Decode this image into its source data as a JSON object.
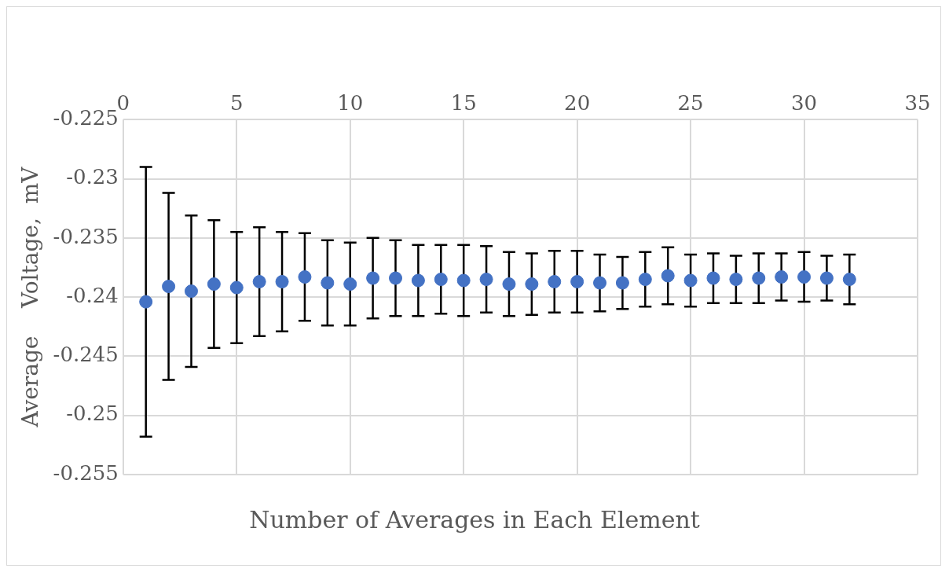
{
  "chart_data": {
    "type": "scatter",
    "xlabel": "Number of Averages in Each Element",
    "ylabel": "Average    Voltage,  mV",
    "x": [
      1,
      2,
      3,
      4,
      5,
      6,
      7,
      8,
      9,
      10,
      11,
      12,
      13,
      14,
      15,
      16,
      17,
      18,
      19,
      20,
      21,
      22,
      23,
      24,
      25,
      26,
      27,
      28,
      29,
      30,
      31,
      32
    ],
    "series": [
      {
        "color": "#4472c4",
        "values": [
          -0.2404,
          -0.2391,
          -0.2395,
          -0.2389,
          -0.2392,
          -0.2387,
          -0.2387,
          -0.2383,
          -0.2388,
          -0.2389,
          -0.2384,
          -0.2384,
          -0.2386,
          -0.2385,
          -0.2386,
          -0.2385,
          -0.2389,
          -0.2389,
          -0.2387,
          -0.2387,
          -0.2388,
          -0.2388,
          -0.2385,
          -0.2382,
          -0.2386,
          -0.2384,
          -0.2385,
          -0.2384,
          -0.2383,
          -0.2383,
          -0.2384,
          -0.2385
        ],
        "errors": [
          0.0114,
          0.0079,
          0.0064,
          0.0054,
          0.0047,
          0.0046,
          0.0042,
          0.0037,
          0.0036,
          0.0035,
          0.0034,
          0.0032,
          0.003,
          0.0029,
          0.003,
          0.0028,
          0.0027,
          0.0026,
          0.0026,
          0.0026,
          0.0024,
          0.0022,
          0.0023,
          0.0024,
          0.0022,
          0.0021,
          0.002,
          0.0021,
          0.002,
          0.0021,
          0.0019,
          0.0021
        ]
      }
    ],
    "xlim": [
      0,
      35
    ],
    "xticks": [
      0,
      5,
      10,
      15,
      20,
      25,
      30,
      35
    ],
    "ylim": [
      -0.255,
      -0.225
    ],
    "yticks": [
      -0.255,
      -0.25,
      -0.245,
      -0.24,
      -0.235,
      -0.23,
      -0.225
    ],
    "grid": true,
    "legend": false,
    "marker": "circle"
  }
}
